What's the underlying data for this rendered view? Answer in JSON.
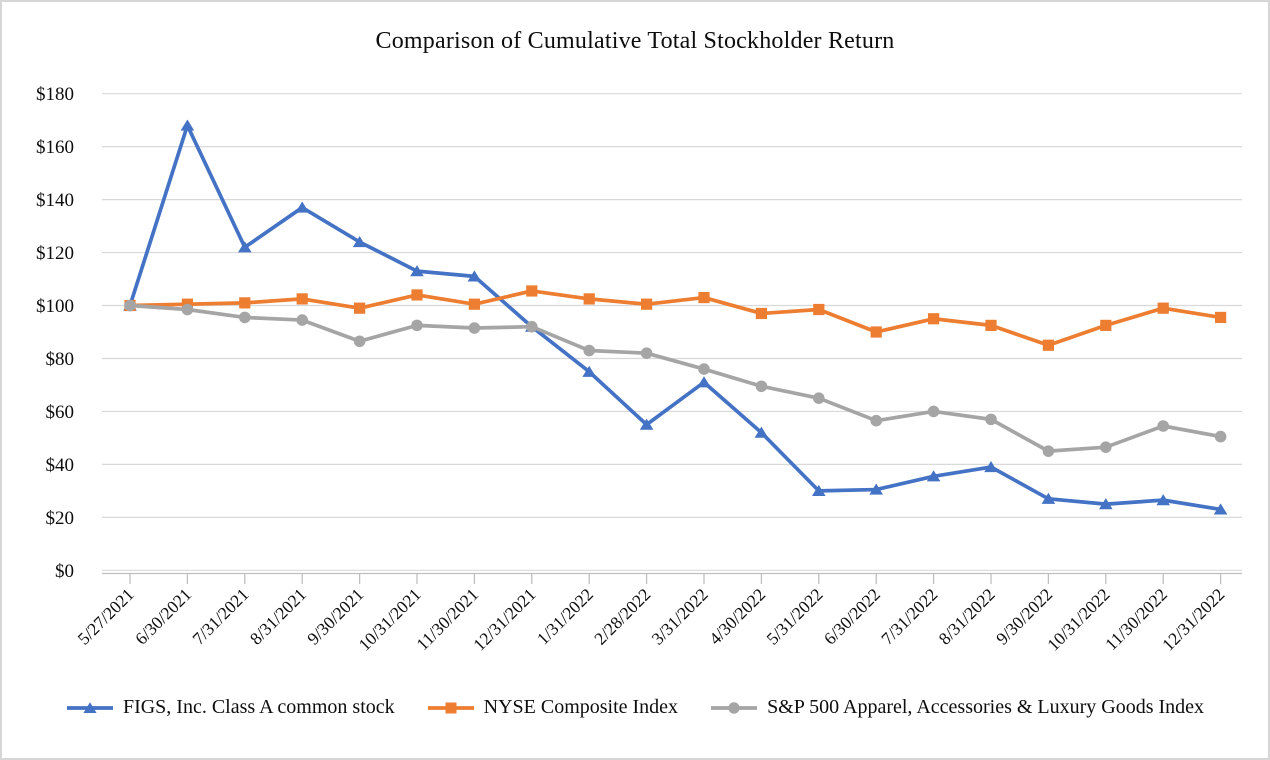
{
  "frame": {
    "background": "#FFFFFF",
    "border_color": "#D6D6D6"
  },
  "chart_data": {
    "type": "line",
    "title": "Comparison of Cumulative Total Stockholder Return",
    "categories": [
      "5/27/2021",
      "6/30/2021",
      "7/31/2021",
      "8/31/2021",
      "9/30/2021",
      "10/31/2021",
      "11/30/2021",
      "12/31/2021",
      "1/31/2022",
      "2/28/2022",
      "3/31/2022",
      "4/30/2022",
      "5/31/2022",
      "6/30/2022",
      "7/31/2022",
      "8/31/2022",
      "9/30/2022",
      "10/31/2022",
      "11/30/2022",
      "12/31/2022"
    ],
    "series": [
      {
        "name": "FIGS, Inc. Class A common stock",
        "color": "#4472C4",
        "marker": "triangle",
        "values": [
          100,
          168,
          122,
          137,
          124,
          113,
          111,
          92,
          75,
          55,
          71,
          52,
          30,
          30.5,
          35.5,
          39,
          27,
          25,
          26.5,
          23
        ]
      },
      {
        "name": "NYSE Composite Index",
        "color": "#ED7D31",
        "marker": "square",
        "values": [
          100,
          100.5,
          101,
          102.5,
          99,
          104,
          100.5,
          105.5,
          102.5,
          100.5,
          103,
          97,
          98.5,
          90,
          95,
          92.5,
          85,
          92.5,
          99,
          95.5
        ]
      },
      {
        "name": "S&P 500 Apparel, Accessories & Luxury Goods Index",
        "color": "#A5A5A5",
        "marker": "circle",
        "values": [
          100,
          98.5,
          95.5,
          94.5,
          86.5,
          92.5,
          91.5,
          92,
          83,
          82,
          76,
          69.5,
          65,
          56.5,
          60,
          57,
          45,
          46.5,
          54.5,
          50.5
        ]
      }
    ],
    "y_axis": {
      "min": 0,
      "max": 180,
      "step": 20,
      "tick_labels": [
        "$180",
        "$160",
        "$140",
        "$120",
        "$100",
        "$80",
        "$60",
        "$40",
        "$20",
        "$0"
      ]
    },
    "x_axis": {
      "label_rotation": -45
    },
    "grid": true,
    "gridline_color": "#D9D9D9",
    "axis_line_color": "#BFBFBF",
    "legend_position": "bottom"
  }
}
